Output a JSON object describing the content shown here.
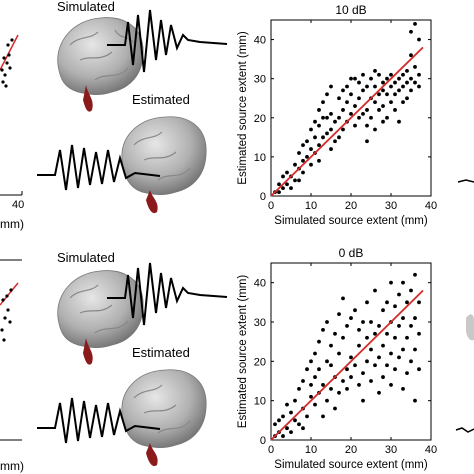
{
  "figure": {
    "left_partial": {
      "tick_40": "40",
      "unit_top": "mm)",
      "unit_bottom": "mm)"
    },
    "brain_labels": {
      "top_simulated": "Simulated",
      "top_estimated": "Estimated",
      "bottom_simulated": "Simulated",
      "bottom_estimated": "Estimated"
    }
  },
  "colors": {
    "fit_line": "#d42a2a",
    "points": "#000000",
    "brain": "#b8b8b8",
    "source": "#8b1a1a"
  },
  "chart_data": [
    {
      "type": "scatter",
      "title": "10 dB",
      "xlabel": "Simulated source extent (mm)",
      "ylabel": "Estimated source extent (mm)",
      "xlim": [
        0,
        40
      ],
      "ylim": [
        0,
        45
      ],
      "xticks": [
        0,
        10,
        20,
        30,
        40
      ],
      "yticks": [
        0,
        10,
        20,
        30,
        40
      ],
      "fit_line": {
        "x": [
          0,
          38
        ],
        "y": [
          0,
          38
        ]
      },
      "points": [
        [
          1,
          1
        ],
        [
          2,
          1
        ],
        [
          2,
          3
        ],
        [
          3,
          2
        ],
        [
          3,
          5
        ],
        [
          4,
          3
        ],
        [
          4,
          6
        ],
        [
          5,
          5
        ],
        [
          5,
          2
        ],
        [
          6,
          4
        ],
        [
          6,
          8
        ],
        [
          7,
          7
        ],
        [
          7,
          11
        ],
        [
          8,
          9
        ],
        [
          8,
          13
        ],
        [
          9,
          10
        ],
        [
          9,
          14
        ],
        [
          10,
          8
        ],
        [
          10,
          12
        ],
        [
          10,
          17
        ],
        [
          11,
          11
        ],
        [
          11,
          15
        ],
        [
          11,
          19
        ],
        [
          12,
          13
        ],
        [
          12,
          18
        ],
        [
          12,
          22
        ],
        [
          13,
          15
        ],
        [
          13,
          24
        ],
        [
          14,
          16
        ],
        [
          14,
          20
        ],
        [
          14,
          26
        ],
        [
          15,
          17
        ],
        [
          15,
          21
        ],
        [
          15,
          28
        ],
        [
          16,
          19
        ],
        [
          16,
          14
        ],
        [
          17,
          20
        ],
        [
          17,
          25
        ],
        [
          17,
          15
        ],
        [
          18,
          22
        ],
        [
          18,
          27
        ],
        [
          18,
          17
        ],
        [
          19,
          19
        ],
        [
          19,
          24
        ],
        [
          20,
          21
        ],
        [
          20,
          26
        ],
        [
          20,
          30
        ],
        [
          21,
          18
        ],
        [
          21,
          23
        ],
        [
          22,
          20
        ],
        [
          22,
          29
        ],
        [
          22,
          25
        ],
        [
          23,
          21
        ],
        [
          23,
          27
        ],
        [
          23,
          31
        ],
        [
          24,
          22
        ],
        [
          24,
          28
        ],
        [
          24,
          18
        ],
        [
          25,
          25
        ],
        [
          25,
          30
        ],
        [
          25,
          20
        ],
        [
          26,
          24
        ],
        [
          26,
          28
        ],
        [
          26,
          17
        ],
        [
          27,
          26
        ],
        [
          27,
          31
        ],
        [
          27,
          22
        ],
        [
          28,
          29
        ],
        [
          28,
          23
        ],
        [
          28,
          27
        ],
        [
          29,
          30
        ],
        [
          29,
          26
        ],
        [
          29,
          20
        ],
        [
          30,
          28
        ],
        [
          30,
          24
        ],
        [
          30,
          31
        ],
        [
          31,
          29
        ],
        [
          31,
          22
        ],
        [
          31,
          26
        ],
        [
          32,
          30
        ],
        [
          32,
          27
        ],
        [
          32,
          19
        ],
        [
          33,
          31
        ],
        [
          33,
          28
        ],
        [
          33,
          24
        ],
        [
          34,
          29
        ],
        [
          34,
          25
        ],
        [
          34,
          32
        ],
        [
          35,
          30
        ],
        [
          35,
          27
        ],
        [
          35,
          36
        ],
        [
          35,
          42
        ],
        [
          36,
          33
        ],
        [
          36,
          29
        ],
        [
          36,
          44
        ],
        [
          37,
          31
        ],
        [
          37,
          28
        ],
        [
          37,
          40
        ],
        [
          7,
          4
        ],
        [
          8,
          6
        ],
        [
          12,
          9
        ],
        [
          13,
          20
        ],
        [
          15,
          12
        ],
        [
          19,
          28
        ],
        [
          21,
          30
        ],
        [
          24,
          14
        ],
        [
          26,
          32
        ],
        [
          28,
          19
        ]
      ]
    },
    {
      "type": "scatter",
      "title": "0 dB",
      "xlabel": "Simulated source extent (mm)",
      "ylabel": "Estimated source extent (mm)",
      "xlim": [
        0,
        40
      ],
      "ylim": [
        0,
        45
      ],
      "xticks": [
        0,
        10,
        20,
        30,
        40
      ],
      "yticks": [
        0,
        10,
        20,
        30,
        40
      ],
      "fit_line": {
        "x": [
          0,
          38
        ],
        "y": [
          0,
          38
        ]
      },
      "points": [
        [
          1,
          1
        ],
        [
          1,
          4
        ],
        [
          2,
          2
        ],
        [
          2,
          5
        ],
        [
          3,
          1
        ],
        [
          3,
          6
        ],
        [
          4,
          3
        ],
        [
          4,
          9
        ],
        [
          5,
          2
        ],
        [
          5,
          7
        ],
        [
          6,
          5
        ],
        [
          6,
          10
        ],
        [
          7,
          4
        ],
        [
          7,
          13
        ],
        [
          8,
          8
        ],
        [
          8,
          15
        ],
        [
          9,
          6
        ],
        [
          9,
          18
        ],
        [
          10,
          11
        ],
        [
          10,
          20
        ],
        [
          10,
          14
        ],
        [
          11,
          9
        ],
        [
          11,
          22
        ],
        [
          11,
          16
        ],
        [
          12,
          12
        ],
        [
          12,
          25
        ],
        [
          12,
          18
        ],
        [
          13,
          14
        ],
        [
          13,
          28
        ],
        [
          14,
          10
        ],
        [
          14,
          20
        ],
        [
          14,
          30
        ],
        [
          15,
          13
        ],
        [
          15,
          24
        ],
        [
          15,
          19
        ],
        [
          16,
          16
        ],
        [
          16,
          27
        ],
        [
          17,
          12
        ],
        [
          17,
          22
        ],
        [
          17,
          32
        ],
        [
          18,
          15
        ],
        [
          18,
          26
        ],
        [
          19,
          18
        ],
        [
          19,
          29
        ],
        [
          19,
          13
        ],
        [
          20,
          21
        ],
        [
          20,
          31
        ],
        [
          20,
          16
        ],
        [
          21,
          19
        ],
        [
          21,
          33
        ],
        [
          22,
          14
        ],
        [
          22,
          24
        ],
        [
          22,
          28
        ],
        [
          23,
          17
        ],
        [
          23,
          30
        ],
        [
          24,
          20
        ],
        [
          24,
          26
        ],
        [
          24,
          35
        ],
        [
          25,
          15
        ],
        [
          25,
          23
        ],
        [
          25,
          30
        ],
        [
          26,
          19
        ],
        [
          26,
          27
        ],
        [
          26,
          38
        ],
        [
          27,
          21
        ],
        [
          27,
          29
        ],
        [
          28,
          16
        ],
        [
          28,
          24
        ],
        [
          28,
          33
        ],
        [
          29,
          19
        ],
        [
          29,
          27
        ],
        [
          29,
          35
        ],
        [
          30,
          22
        ],
        [
          30,
          30
        ],
        [
          30,
          14
        ],
        [
          31,
          26
        ],
        [
          31,
          34
        ],
        [
          31,
          18
        ],
        [
          32,
          21
        ],
        [
          32,
          29
        ],
        [
          32,
          37
        ],
        [
          33,
          23
        ],
        [
          33,
          31
        ],
        [
          33,
          40
        ],
        [
          34,
          17
        ],
        [
          34,
          26
        ],
        [
          34,
          35
        ],
        [
          35,
          20
        ],
        [
          35,
          29
        ],
        [
          35,
          38
        ],
        [
          36,
          23
        ],
        [
          36,
          31
        ],
        [
          36,
          42
        ],
        [
          37,
          27
        ],
        [
          37,
          35
        ],
        [
          37,
          18
        ],
        [
          8,
          3
        ],
        [
          13,
          6
        ],
        [
          16,
          8
        ],
        [
          18,
          36
        ],
        [
          23,
          10
        ],
        [
          27,
          12
        ],
        [
          30,
          40
        ],
        [
          33,
          13
        ],
        [
          36,
          10
        ]
      ]
    }
  ]
}
